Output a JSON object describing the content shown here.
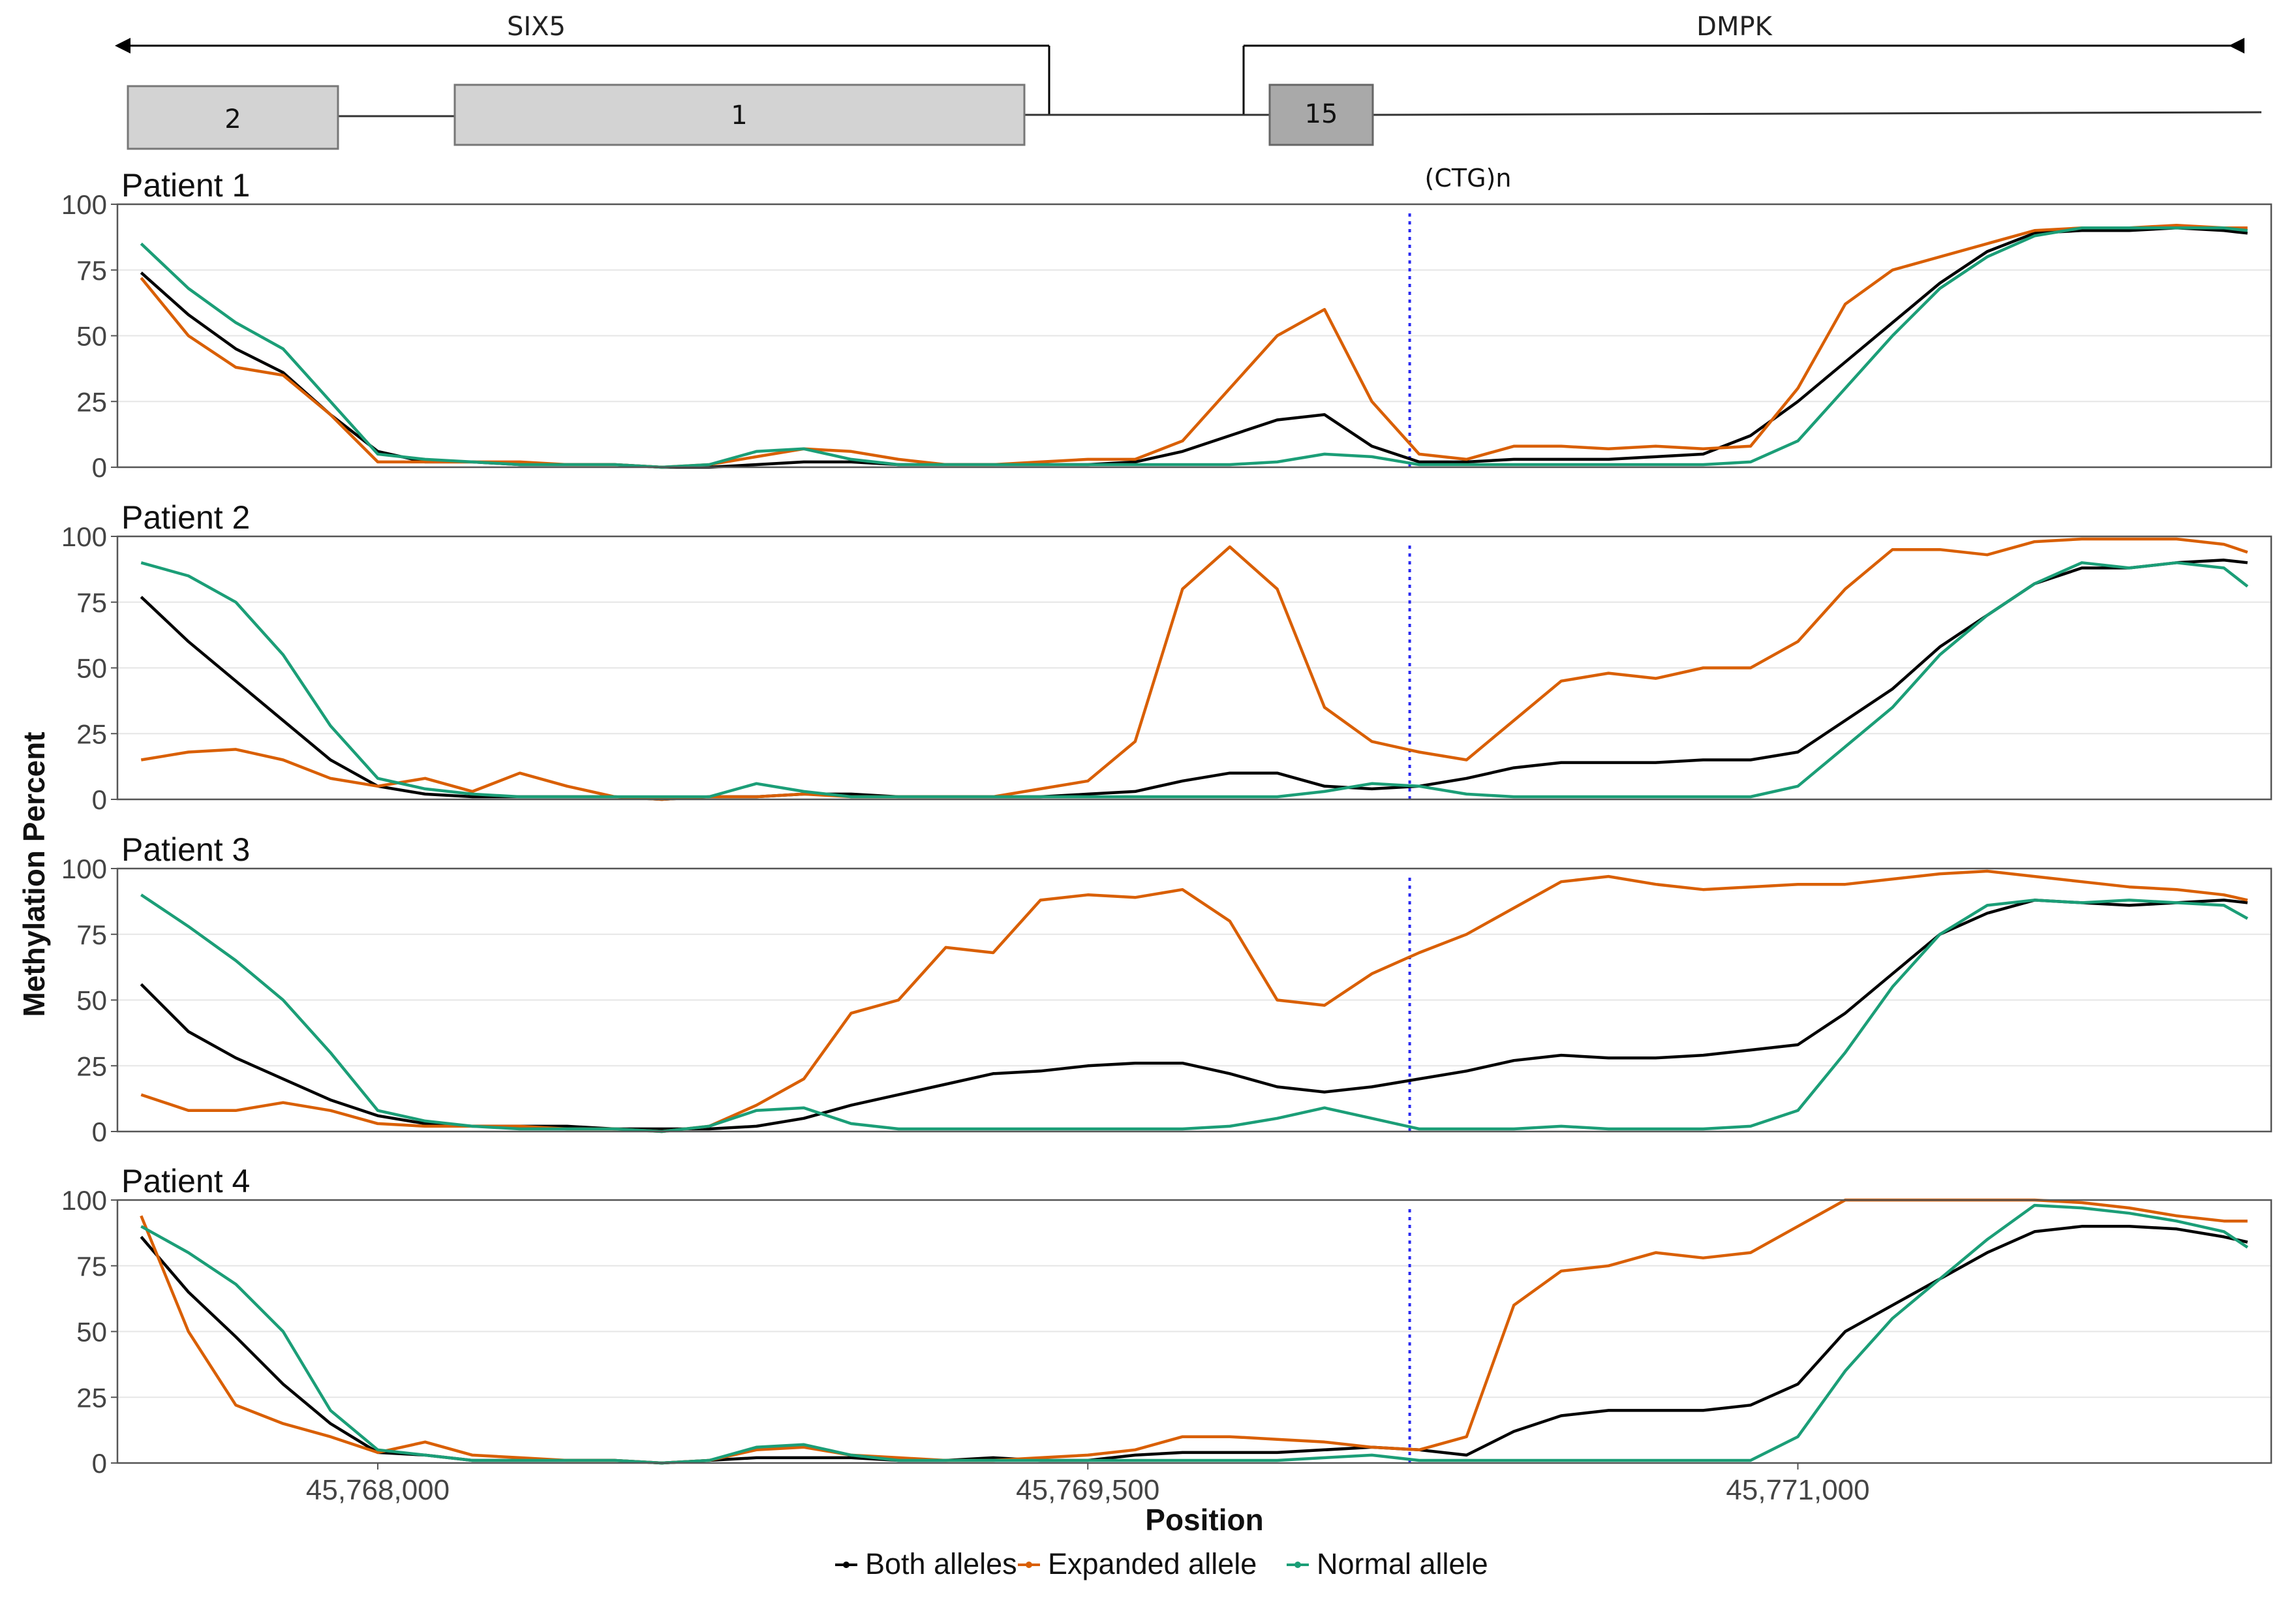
{
  "colors": {
    "both": "#000000",
    "expanded": "#D95F02",
    "normal": "#1B9E77",
    "ctg_line": "#2B2BF0",
    "grid": "#e6e6e6",
    "exon_six5": "#d3d3d3",
    "exon_dmpk": "#a9a9a9"
  },
  "gene_model": {
    "genes": [
      {
        "name": "SIX5",
        "direction": "left"
      },
      {
        "name": "DMPK",
        "direction": "left"
      }
    ],
    "exons": [
      {
        "label": "2",
        "gene": "SIX5"
      },
      {
        "label": "1",
        "gene": "SIX5"
      },
      {
        "label": "15",
        "gene": "DMPK"
      }
    ]
  },
  "ctg_label": "(CTG)n",
  "chart_data": {
    "type": "line",
    "xlabel": "Position",
    "ylabel": "Methylation Percent",
    "xlim": [
      45767450,
      45772000
    ],
    "ylim": [
      0,
      100
    ],
    "xticks": [
      45768000,
      45769500,
      45771000
    ],
    "xtick_labels": [
      "45,768,000",
      "45,769,500",
      "45,771,000"
    ],
    "yticks": [
      0,
      25,
      50,
      75,
      100
    ],
    "ytick_labels": [
      "0",
      "25",
      "50",
      "75",
      "100"
    ],
    "ctg_position": 45770180,
    "legend": [
      {
        "key": "both",
        "label": "Both alleles"
      },
      {
        "key": "expanded",
        "label": "Expanded allele"
      },
      {
        "key": "normal",
        "label": "Normal allele"
      }
    ],
    "x": [
      45767500,
      45767600,
      45767700,
      45767800,
      45767900,
      45768000,
      45768100,
      45768200,
      45768300,
      45768400,
      45768500,
      45768600,
      45768700,
      45768800,
      45768900,
      45769000,
      45769100,
      45769200,
      45769300,
      45769400,
      45769500,
      45769600,
      45769700,
      45769800,
      45769900,
      45770000,
      45770100,
      45770200,
      45770300,
      45770400,
      45770500,
      45770600,
      45770700,
      45770800,
      45770900,
      45771000,
      45771100,
      45771200,
      45771300,
      45771400,
      45771500,
      45771600,
      45771700,
      45771800,
      45771900,
      45771950
    ],
    "panels": [
      {
        "title": "Patient 1",
        "series": [
          {
            "key": "both",
            "name": "Both alleles",
            "values": [
              74,
              58,
              45,
              36,
              20,
              6,
              2,
              2,
              1,
              1,
              1,
              0,
              0,
              1,
              2,
              2,
              1,
              1,
              1,
              1,
              1,
              2,
              6,
              12,
              18,
              20,
              8,
              2,
              2,
              3,
              3,
              3,
              4,
              5,
              12,
              25,
              40,
              55,
              70,
              82,
              89,
              90,
              90,
              91,
              90,
              89
            ]
          },
          {
            "key": "expanded",
            "name": "Expanded allele",
            "values": [
              72,
              50,
              38,
              35,
              20,
              2,
              2,
              2,
              2,
              1,
              1,
              0,
              1,
              4,
              7,
              6,
              3,
              1,
              1,
              2,
              3,
              3,
              10,
              30,
              50,
              60,
              25,
              5,
              3,
              8,
              8,
              7,
              8,
              7,
              8,
              30,
              62,
              75,
              80,
              85,
              90,
              91,
              91,
              92,
              91,
              91
            ]
          },
          {
            "key": "normal",
            "name": "Normal allele",
            "values": [
              85,
              68,
              55,
              45,
              25,
              5,
              3,
              2,
              1,
              1,
              1,
              0,
              1,
              6,
              7,
              3,
              1,
              1,
              1,
              1,
              1,
              1,
              1,
              1,
              2,
              5,
              4,
              1,
              1,
              1,
              1,
              1,
              1,
              1,
              2,
              10,
              30,
              50,
              68,
              80,
              88,
              91,
              91,
              91,
              91,
              90
            ]
          }
        ]
      },
      {
        "title": "Patient 2",
        "series": [
          {
            "key": "both",
            "name": "Both alleles",
            "values": [
              77,
              60,
              45,
              30,
              15,
              5,
              2,
              1,
              1,
              1,
              1,
              0,
              1,
              1,
              2,
              2,
              1,
              1,
              1,
              1,
              2,
              3,
              7,
              10,
              10,
              5,
              4,
              5,
              8,
              12,
              14,
              14,
              14,
              15,
              15,
              18,
              30,
              42,
              58,
              70,
              82,
              88,
              88,
              90,
              91,
              90
            ]
          },
          {
            "key": "expanded",
            "name": "Expanded allele",
            "values": [
              15,
              18,
              19,
              15,
              8,
              5,
              8,
              3,
              10,
              5,
              1,
              0,
              1,
              1,
              2,
              1,
              1,
              1,
              1,
              4,
              7,
              22,
              80,
              96,
              80,
              35,
              22,
              18,
              15,
              30,
              45,
              48,
              46,
              50,
              50,
              60,
              80,
              95,
              95,
              93,
              98,
              99,
              99,
              99,
              97,
              94
            ]
          },
          {
            "key": "normal",
            "name": "Normal allele",
            "values": [
              90,
              85,
              75,
              55,
              28,
              8,
              4,
              2,
              1,
              1,
              1,
              1,
              1,
              6,
              3,
              1,
              1,
              1,
              1,
              1,
              1,
              1,
              1,
              1,
              1,
              3,
              6,
              5,
              2,
              1,
              1,
              1,
              1,
              1,
              1,
              5,
              20,
              35,
              55,
              70,
              82,
              90,
              88,
              90,
              88,
              81
            ]
          }
        ]
      },
      {
        "title": "Patient 3",
        "series": [
          {
            "key": "both",
            "name": "Both alleles",
            "values": [
              56,
              38,
              28,
              20,
              12,
              6,
              3,
              2,
              2,
              2,
              1,
              1,
              1,
              2,
              5,
              10,
              14,
              18,
              22,
              23,
              25,
              26,
              26,
              22,
              17,
              15,
              17,
              20,
              23,
              27,
              29,
              28,
              28,
              29,
              31,
              33,
              45,
              60,
              75,
              83,
              88,
              87,
              86,
              87,
              88,
              87
            ]
          },
          {
            "key": "expanded",
            "name": "Expanded allele",
            "values": [
              14,
              8,
              8,
              11,
              8,
              3,
              2,
              2,
              2,
              1,
              1,
              0,
              2,
              10,
              20,
              45,
              50,
              70,
              68,
              88,
              90,
              89,
              92,
              80,
              50,
              48,
              60,
              68,
              75,
              85,
              95,
              97,
              94,
              92,
              93,
              94,
              94,
              96,
              98,
              99,
              97,
              95,
              93,
              92,
              90,
              88
            ]
          },
          {
            "key": "normal",
            "name": "Normal allele",
            "values": [
              90,
              78,
              65,
              50,
              30,
              8,
              4,
              2,
              1,
              1,
              1,
              0,
              2,
              8,
              9,
              3,
              1,
              1,
              1,
              1,
              1,
              1,
              1,
              2,
              5,
              9,
              5,
              1,
              1,
              1,
              2,
              1,
              1,
              1,
              2,
              8,
              30,
              55,
              75,
              86,
              88,
              87,
              88,
              87,
              86,
              81
            ]
          }
        ]
      },
      {
        "title": "Patient 4",
        "series": [
          {
            "key": "both",
            "name": "Both alleles",
            "values": [
              86,
              65,
              48,
              30,
              15,
              4,
              3,
              1,
              1,
              1,
              1,
              0,
              1,
              2,
              2,
              2,
              1,
              1,
              2,
              1,
              1,
              3,
              4,
              4,
              4,
              5,
              6,
              5,
              3,
              12,
              18,
              20,
              20,
              20,
              22,
              30,
              50,
              60,
              70,
              80,
              88,
              90,
              90,
              89,
              86,
              84
            ]
          },
          {
            "key": "expanded",
            "name": "Expanded allele",
            "values": [
              94,
              50,
              22,
              15,
              10,
              4,
              8,
              3,
              2,
              1,
              1,
              0,
              1,
              5,
              6,
              3,
              2,
              1,
              1,
              2,
              3,
              5,
              10,
              10,
              9,
              8,
              6,
              5,
              10,
              60,
              73,
              75,
              80,
              78,
              80,
              90,
              100,
              100,
              100,
              100,
              100,
              99,
              97,
              94,
              92,
              92
            ]
          },
          {
            "key": "normal",
            "name": "Normal allele",
            "values": [
              90,
              80,
              68,
              50,
              20,
              5,
              3,
              1,
              1,
              1,
              1,
              0,
              1,
              6,
              7,
              3,
              1,
              1,
              1,
              1,
              1,
              1,
              1,
              1,
              1,
              2,
              3,
              1,
              1,
              1,
              1,
              1,
              1,
              1,
              1,
              10,
              35,
              55,
              70,
              85,
              98,
              97,
              95,
              92,
              88,
              82
            ]
          }
        ]
      }
    ]
  }
}
